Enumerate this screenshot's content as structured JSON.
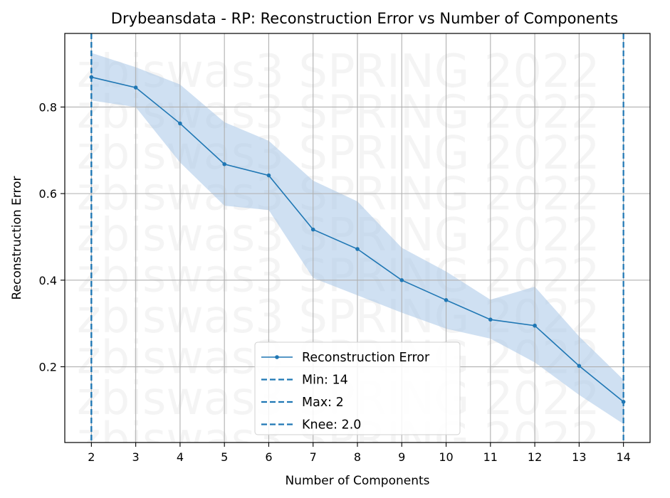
{
  "chart_data": {
    "type": "line",
    "title": "Drybeansdata - RP: Reconstruction Error vs Number of Components",
    "xlabel": "Number of Components",
    "ylabel": "Reconstruction Error",
    "x": [
      2,
      3,
      4,
      5,
      6,
      7,
      8,
      9,
      10,
      11,
      12,
      13,
      14
    ],
    "xticks": [
      "2",
      "3",
      "4",
      "5",
      "6",
      "7",
      "8",
      "9",
      "10",
      "11",
      "12",
      "13",
      "14"
    ],
    "yticks": [
      "0.2",
      "0.4",
      "0.6",
      "0.8"
    ],
    "xlim": [
      1.4,
      14.6
    ],
    "ylim": [
      0.025,
      0.97
    ],
    "grid": true,
    "legend_position": "bottom-center",
    "series": [
      {
        "name": "Reconstruction Error",
        "values": [
          0.869,
          0.845,
          0.762,
          0.668,
          0.642,
          0.517,
          0.472,
          0.4,
          0.354,
          0.309,
          0.295,
          0.202,
          0.119
        ],
        "band_upper": [
          0.925,
          0.892,
          0.852,
          0.765,
          0.722,
          0.63,
          0.582,
          0.475,
          0.42,
          0.355,
          0.385,
          0.27,
          0.17
        ],
        "band_lower": [
          0.815,
          0.8,
          0.672,
          0.572,
          0.562,
          0.405,
          0.365,
          0.325,
          0.288,
          0.265,
          0.21,
          0.135,
          0.068
        ],
        "color": "#1f77b4",
        "band_color": "#a7c7e7"
      }
    ],
    "vlines": [
      {
        "label": "Min: 14",
        "x": 14,
        "color": "#1f77b4"
      },
      {
        "label": "Max: 2",
        "x": 2,
        "color": "#1f77b4"
      },
      {
        "label": "Knee: 2.0",
        "x": 2,
        "color": "#1f77b4"
      }
    ],
    "watermark": "zbiswas3 SPRING 2022"
  }
}
